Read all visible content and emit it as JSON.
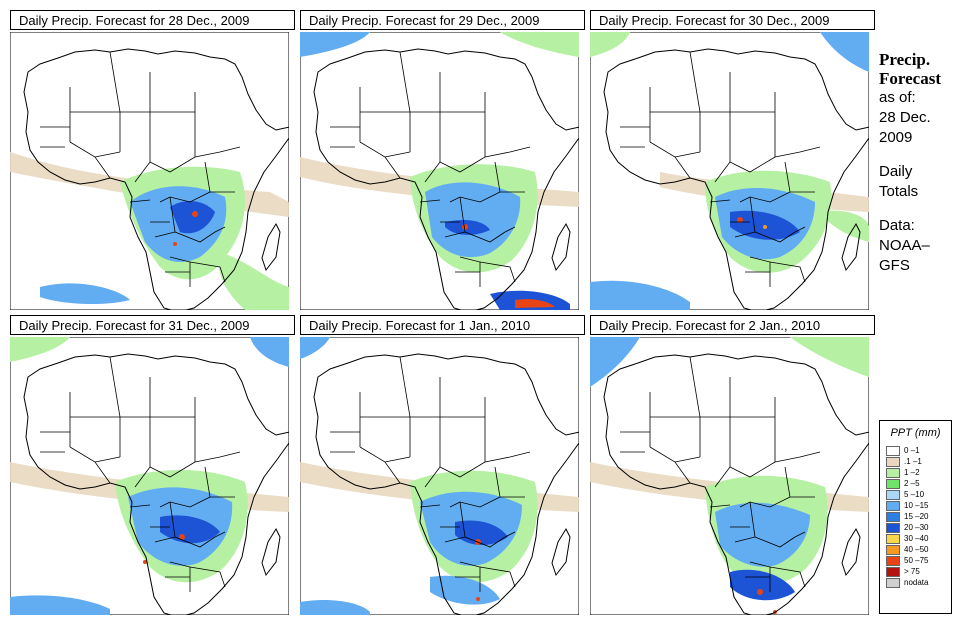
{
  "panels": [
    {
      "title": "Daily Precip. Forecast for  28 Dec., 2009"
    },
    {
      "title": "Daily Precip. Forecast for  29 Dec., 2009"
    },
    {
      "title": "Daily Precip. Forecast for  30 Dec., 2009"
    },
    {
      "title": "Daily Precip. Forecast for  31 Dec., 2009"
    },
    {
      "title": "Daily Precip. Forecast for  1 Jan., 2010"
    },
    {
      "title": "Daily Precip. Forecast for  2 Jan., 2010"
    }
  ],
  "side": {
    "title_line1": "Precip.",
    "title_line2": "Forecast",
    "as_of": "as of:",
    "date_line1": "28 Dec.",
    "date_line2": "2009",
    "totals_line1": "Daily",
    "totals_line2": "Totals",
    "data_line1": "Data:",
    "data_line2": "NOAA–",
    "data_line3": "GFS"
  },
  "legend": {
    "title": "PPT (mm)",
    "items": [
      {
        "label": "0 –1",
        "color": "#ffffff"
      },
      {
        "label": ".1 –1",
        "color": "#e9d8bf"
      },
      {
        "label": "1 –2",
        "color": "#b6f0a2"
      },
      {
        "label": "2 –5",
        "color": "#6ee46a"
      },
      {
        "label": "5 –10",
        "color": "#a9d8f7"
      },
      {
        "label": "10 –15",
        "color": "#62acf2"
      },
      {
        "label": "15 –20",
        "color": "#2f7fe3"
      },
      {
        "label": "20 –30",
        "color": "#1d54d6"
      },
      {
        "label": "30 –40",
        "color": "#f7d84d"
      },
      {
        "label": "40 –50",
        "color": "#f59a22"
      },
      {
        "label": "50 –75",
        "color": "#e84416"
      },
      {
        "label": "> 75",
        "color": "#b51212"
      },
      {
        "label": "nodata",
        "color": "#d0d0d0"
      }
    ]
  }
}
